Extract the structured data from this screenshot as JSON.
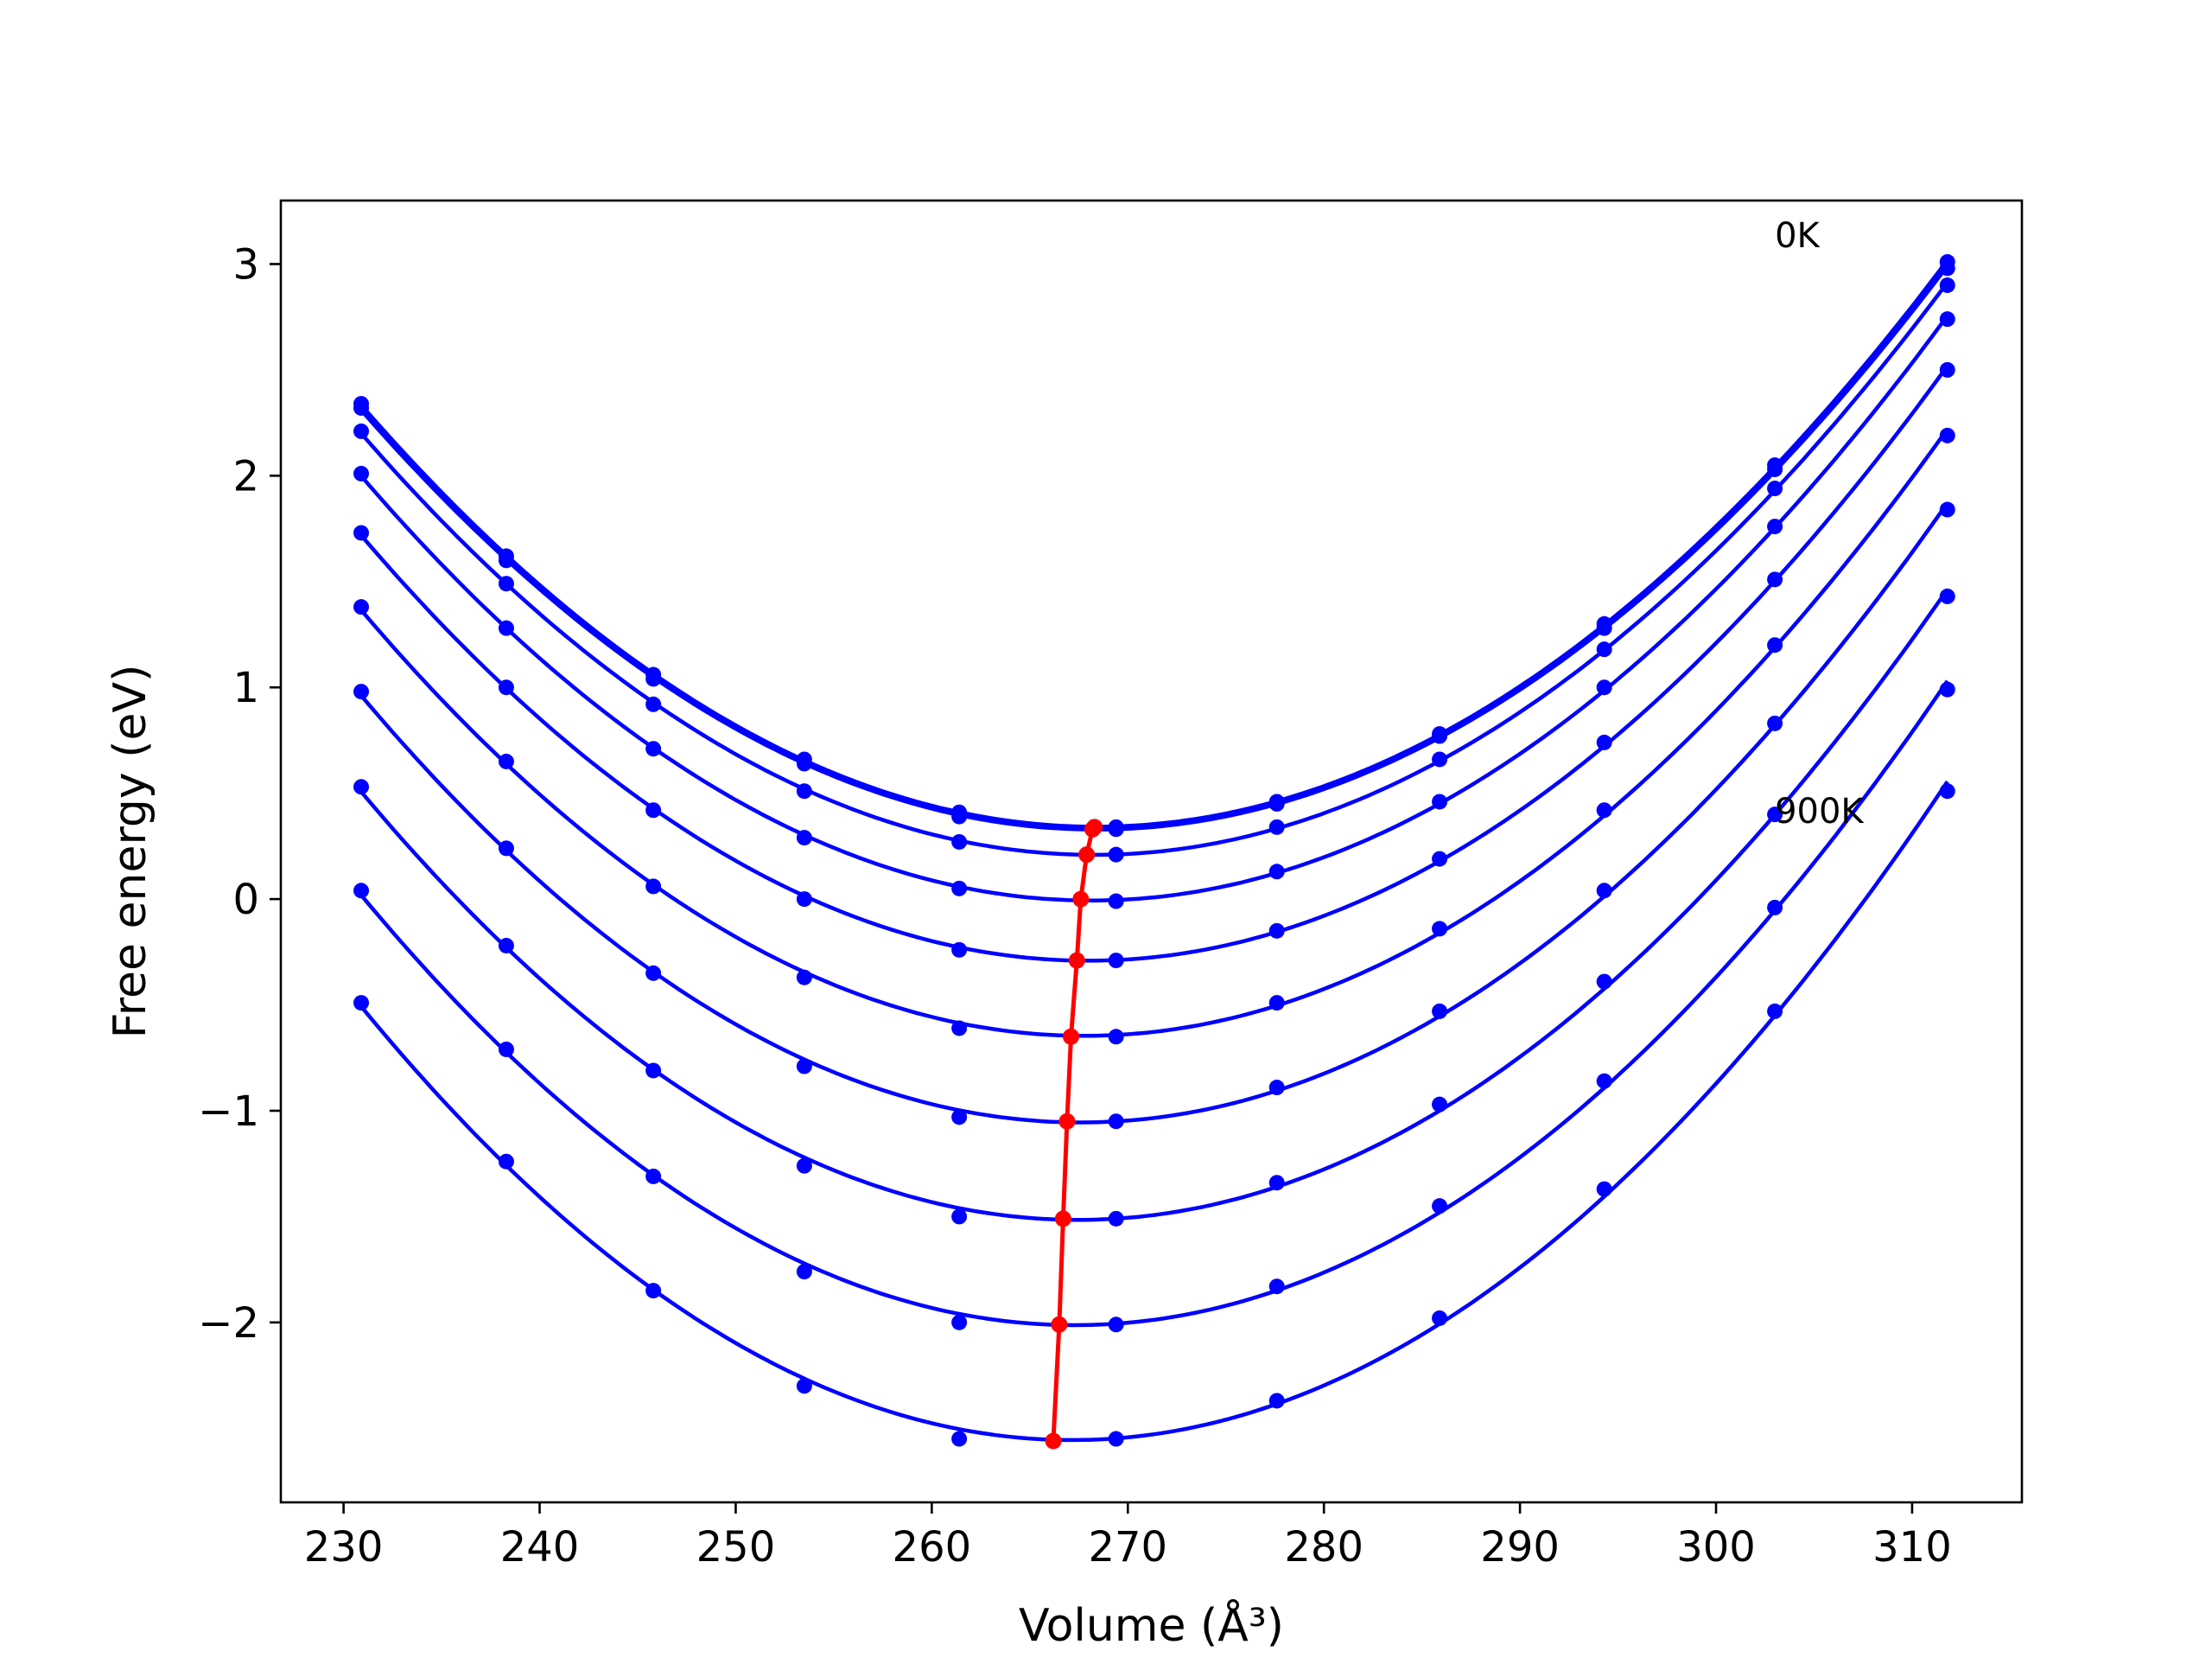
{
  "chart_data": {
    "type": "line",
    "title": "",
    "xlabel": "Volume (Å³)",
    "ylabel": "Free energy (eV)",
    "xlim": [
      226.8,
      315.6
    ],
    "ylim": [
      -2.85,
      3.3
    ],
    "xticks": [
      230,
      240,
      250,
      260,
      270,
      280,
      290,
      300,
      310
    ],
    "yticks": [
      -2,
      -1,
      0,
      1,
      2,
      3
    ],
    "ytick_labels": [
      "−2",
      "−1",
      "0",
      "1",
      "2",
      "3"
    ],
    "grid": false,
    "legend": "none",
    "colors": {
      "curves": "#0000ff",
      "minima": "#ff0000"
    },
    "x": [
      230.9,
      238.3,
      245.8,
      253.5,
      261.4,
      269.4,
      277.6,
      285.9,
      294.3,
      303.0,
      311.8
    ],
    "series": [
      {
        "values": [
          2.34,
          1.62,
          1.06,
          0.66,
          0.41,
          0.34,
          0.46,
          0.78,
          1.3,
          2.05,
          3.01
        ]
      },
      {
        "values": [
          2.32,
          1.6,
          1.04,
          0.64,
          0.39,
          0.33,
          0.45,
          0.77,
          1.28,
          2.03,
          2.98
        ]
      },
      {
        "values": [
          2.21,
          1.49,
          0.92,
          0.51,
          0.27,
          0.21,
          0.34,
          0.66,
          1.18,
          1.94,
          2.9
        ]
      },
      {
        "values": [
          2.01,
          1.28,
          0.71,
          0.29,
          0.05,
          -0.01,
          0.13,
          0.46,
          1.0,
          1.76,
          2.74
        ]
      },
      {
        "values": [
          1.73,
          1.0,
          0.42,
          0.0,
          -0.24,
          -0.29,
          -0.15,
          0.19,
          0.74,
          1.51,
          2.5
        ]
      },
      {
        "values": [
          1.38,
          0.65,
          0.06,
          -0.37,
          -0.61,
          -0.65,
          -0.49,
          -0.14,
          0.42,
          1.2,
          2.19
        ]
      },
      {
        "values": [
          0.98,
          0.24,
          -0.35,
          -0.79,
          -1.03,
          -1.05,
          -0.89,
          -0.53,
          0.04,
          0.83,
          1.84
        ]
      },
      {
        "values": [
          0.53,
          -0.22,
          -0.81,
          -1.26,
          -1.5,
          -1.51,
          -1.34,
          -0.97,
          -0.39,
          0.4,
          1.43
        ]
      },
      {
        "values": [
          0.04,
          -0.71,
          -1.31,
          -1.76,
          -2.0,
          -2.01,
          -1.83,
          -1.45,
          -0.86,
          -0.04,
          0.99
        ]
      },
      {
        "values": [
          -0.49,
          -1.24,
          -1.85,
          -2.3,
          -2.55,
          -2.55,
          -2.37,
          -1.98,
          -1.37,
          -0.53,
          0.51
        ]
      }
    ],
    "minima": {
      "x": [
        268.3,
        268.2,
        267.9,
        267.6,
        267.4,
        267.1,
        266.9,
        266.7,
        266.5,
        266.2
      ],
      "y": [
        0.34,
        0.33,
        0.21,
        0.0,
        -0.29,
        -0.65,
        -1.05,
        -1.51,
        -2.01,
        -2.56
      ]
    },
    "annotations": [
      {
        "text": "0K",
        "x": 303.0,
        "y": 3.08
      },
      {
        "text": "900K",
        "x": 303.0,
        "y": 0.36
      }
    ]
  }
}
